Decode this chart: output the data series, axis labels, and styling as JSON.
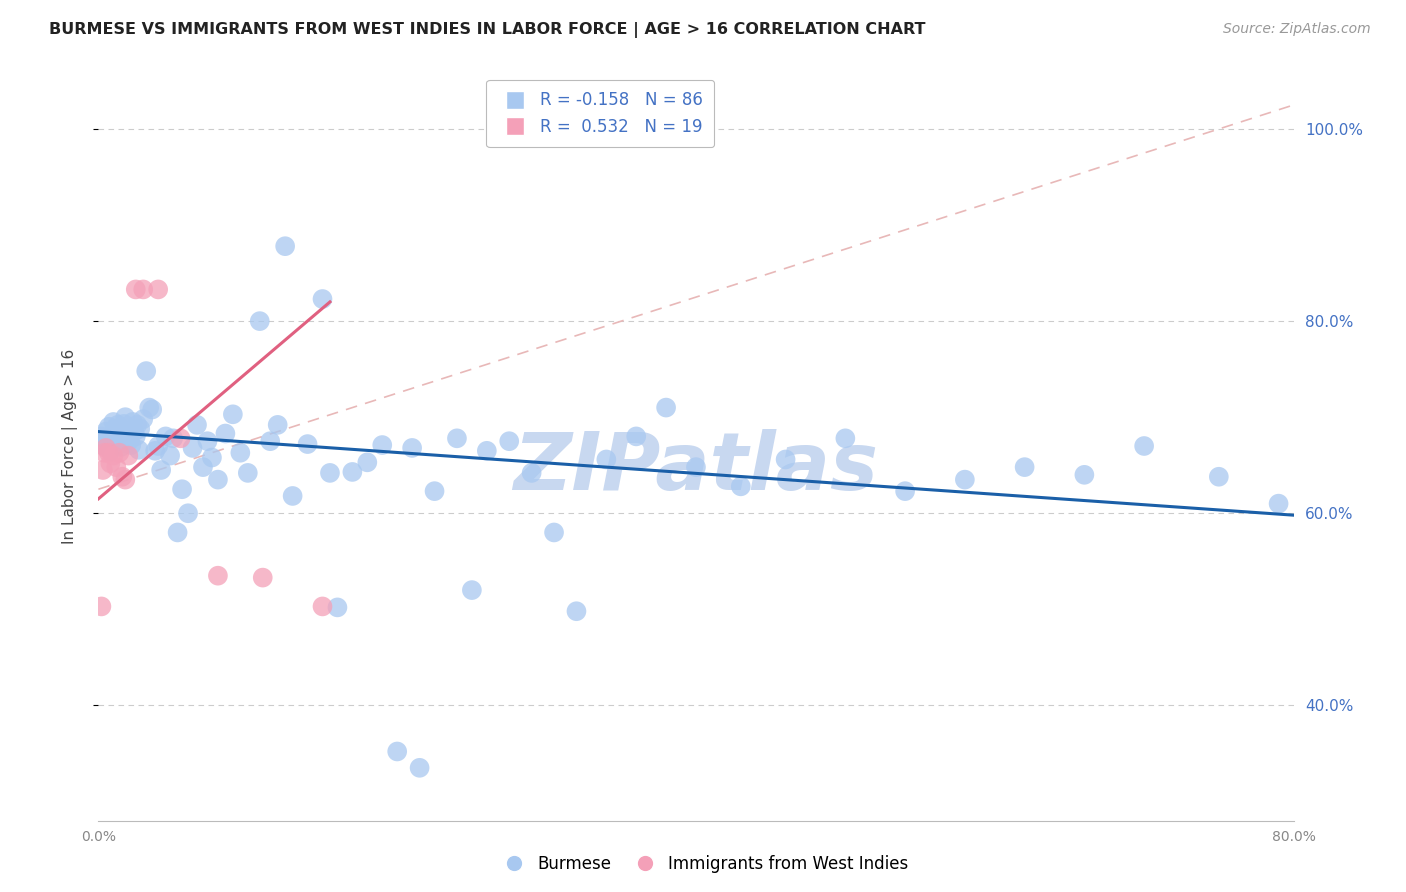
{
  "title": "BURMESE VS IMMIGRANTS FROM WEST INDIES IN LABOR FORCE | AGE > 16 CORRELATION CHART",
  "source": "Source: ZipAtlas.com",
  "ylabel": "In Labor Force | Age > 16",
  "xlim": [
    0.0,
    0.8
  ],
  "ylim": [
    0.28,
    1.06
  ],
  "yticks": [
    0.4,
    0.6,
    0.8,
    1.0
  ],
  "xticks": [
    0.0,
    0.1,
    0.2,
    0.3,
    0.4,
    0.5,
    0.6,
    0.7,
    0.8
  ],
  "burmese_R": -0.158,
  "burmese_N": 86,
  "westindies_R": 0.532,
  "westindies_N": 19,
  "burmese_color": "#a8c8f0",
  "westindies_color": "#f4a0b8",
  "burmese_line_color": "#1a5fa8",
  "westindies_line_color": "#e06080",
  "ref_line_color": "#e8b8b8",
  "watermark": "ZIPatlas",
  "watermark_color": "#c8d8f0",
  "burmese_line_x0": 0.0,
  "burmese_line_x1": 0.8,
  "burmese_line_y0": 0.685,
  "burmese_line_y1": 0.598,
  "westindies_line_x0": 0.0,
  "westindies_line_x1": 0.155,
  "westindies_line_y0": 0.615,
  "westindies_line_y1": 0.82,
  "ref_line_x0": 0.0,
  "ref_line_x1": 0.8,
  "ref_line_y0": 0.625,
  "ref_line_y1": 1.025,
  "burmese_x": [
    0.002,
    0.003,
    0.004,
    0.005,
    0.006,
    0.007,
    0.008,
    0.009,
    0.01,
    0.011,
    0.012,
    0.013,
    0.014,
    0.015,
    0.016,
    0.017,
    0.018,
    0.019,
    0.02,
    0.021,
    0.022,
    0.023,
    0.024,
    0.025,
    0.026,
    0.027,
    0.028,
    0.03,
    0.032,
    0.034,
    0.036,
    0.038,
    0.04,
    0.042,
    0.045,
    0.048,
    0.05,
    0.053,
    0.056,
    0.06,
    0.063,
    0.066,
    0.07,
    0.073,
    0.076,
    0.08,
    0.085,
    0.09,
    0.095,
    0.1,
    0.108,
    0.115,
    0.12,
    0.125,
    0.13,
    0.14,
    0.15,
    0.155,
    0.16,
    0.17,
    0.18,
    0.19,
    0.2,
    0.21,
    0.215,
    0.225,
    0.24,
    0.25,
    0.26,
    0.275,
    0.29,
    0.305,
    0.32,
    0.34,
    0.36,
    0.38,
    0.4,
    0.43,
    0.46,
    0.5,
    0.54,
    0.58,
    0.62,
    0.66,
    0.7,
    0.75,
    0.79
  ],
  "burmese_y": [
    0.68,
    0.675,
    0.67,
    0.685,
    0.67,
    0.69,
    0.665,
    0.68,
    0.695,
    0.688,
    0.675,
    0.692,
    0.683,
    0.669,
    0.678,
    0.693,
    0.7,
    0.673,
    0.685,
    0.676,
    0.671,
    0.695,
    0.685,
    0.68,
    0.692,
    0.666,
    0.688,
    0.698,
    0.748,
    0.71,
    0.708,
    0.665,
    0.67,
    0.645,
    0.68,
    0.66,
    0.678,
    0.58,
    0.625,
    0.6,
    0.668,
    0.692,
    0.648,
    0.675,
    0.658,
    0.635,
    0.683,
    0.703,
    0.663,
    0.642,
    0.8,
    0.675,
    0.692,
    0.878,
    0.618,
    0.672,
    0.823,
    0.642,
    0.502,
    0.643,
    0.653,
    0.671,
    0.352,
    0.668,
    0.335,
    0.623,
    0.678,
    0.52,
    0.665,
    0.675,
    0.642,
    0.58,
    0.498,
    0.656,
    0.68,
    0.71,
    0.648,
    0.628,
    0.656,
    0.678,
    0.623,
    0.635,
    0.648,
    0.64,
    0.67,
    0.638,
    0.61
  ],
  "westindies_x": [
    0.002,
    0.003,
    0.004,
    0.005,
    0.007,
    0.008,
    0.01,
    0.012,
    0.014,
    0.016,
    0.018,
    0.02,
    0.025,
    0.03,
    0.04,
    0.055,
    0.08,
    0.11,
    0.15
  ],
  "westindies_y": [
    0.503,
    0.645,
    0.663,
    0.668,
    0.663,
    0.652,
    0.66,
    0.648,
    0.663,
    0.638,
    0.635,
    0.66,
    0.833,
    0.833,
    0.833,
    0.678,
    0.535,
    0.533,
    0.503
  ]
}
